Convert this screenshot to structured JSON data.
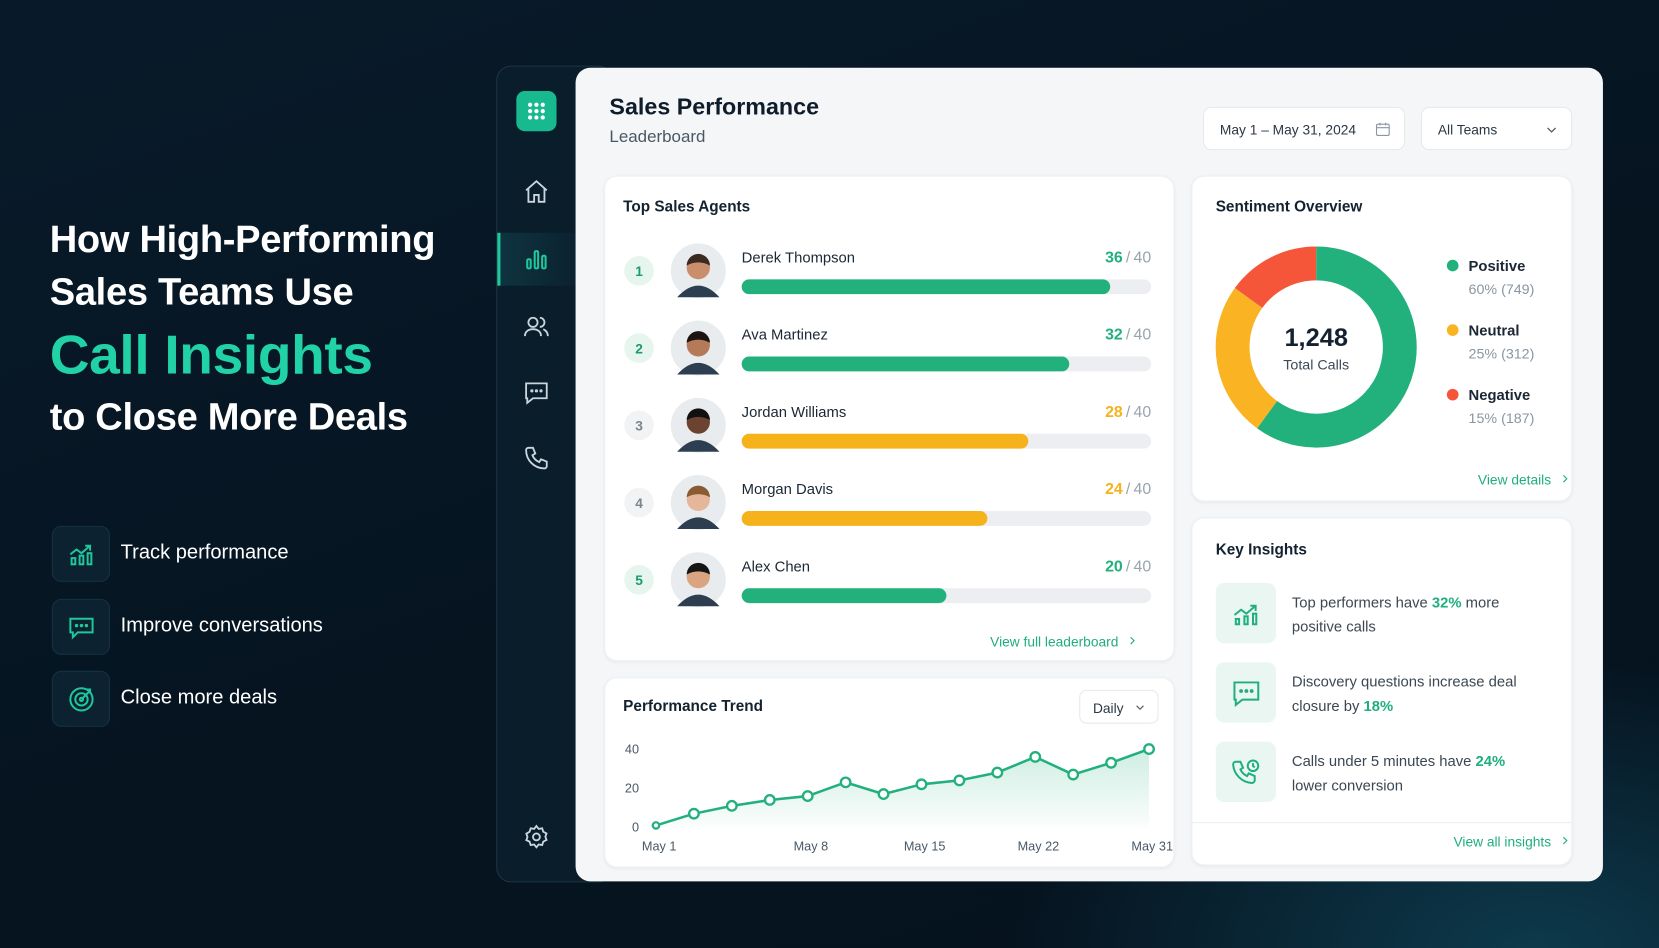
{
  "hero": {
    "title_lines": [
      "How High-Performing",
      "Sales Teams Use"
    ],
    "highlight": "Call Insights",
    "title_end": "to Close More Deals"
  },
  "features": [
    {
      "label": "Track performance"
    },
    {
      "label": "Improve conversations"
    },
    {
      "label": "Close more deals"
    }
  ],
  "dashboard": {
    "title": "Sales Performance",
    "subtitle": "Leaderboard",
    "date_range": "May 1 – May 31, 2024",
    "team_filter": "All Teams"
  },
  "top_agents": {
    "title": "Top Sales Agents",
    "separator": "/",
    "link": "View full leaderboard",
    "agents": [
      {
        "rank": 1,
        "name": "Derek Thompson",
        "score": 36,
        "max": 40,
        "color": "#22b07d"
      },
      {
        "rank": 2,
        "name": "Ava Martinez",
        "score": 32,
        "max": 40,
        "color": "#22b07d"
      },
      {
        "rank": 3,
        "name": "Jordan Williams",
        "score": 28,
        "max": 40,
        "color": "#f6b21b"
      },
      {
        "rank": 4,
        "name": "Morgan Davis",
        "score": 24,
        "max": 40,
        "color": "#f6b21b"
      },
      {
        "rank": 5,
        "name": "Alex Chen",
        "score": 20,
        "max": 40,
        "color": "#22b07d"
      }
    ]
  },
  "sentiment": {
    "type": "donut",
    "title": "Sentiment Overview",
    "categories": [
      "Positive",
      "Neutral",
      "Negative"
    ],
    "values": [
      60,
      25,
      15
    ],
    "value_labels": [
      "60% (749)",
      "25% (312)",
      "15% (187)"
    ],
    "colors": [
      "#22b07d",
      "#f9b323",
      "#f5563a"
    ],
    "center_value": "1,248",
    "center_label": "Total Calls",
    "link": "View details"
  },
  "insights": {
    "title": "Key Insights",
    "link": "View all insights",
    "items": [
      {
        "before": "Top performers have ",
        "highlight": "32%",
        "after": " more positive calls"
      },
      {
        "before": "Discovery questions increase deal closure by ",
        "highlight": "18%"
      },
      {
        "before": "Calls under 5 minutes have ",
        "highlight": "24%",
        "after": " lower conversion"
      }
    ]
  },
  "trend": {
    "type": "line",
    "title": "Performance Trend",
    "period": "Daily",
    "categories": [
      "May 1",
      null,
      null,
      null,
      "May 8",
      null,
      null,
      "May 15",
      null,
      null,
      "May 22",
      null,
      null,
      "May 31"
    ],
    "values": [
      1,
      7,
      11,
      14,
      16,
      23,
      17,
      22,
      24,
      28,
      36,
      27,
      33,
      40
    ],
    "ylim": [
      0,
      40
    ],
    "yticks": [
      0,
      20,
      40
    ],
    "color": "#22b07d"
  }
}
